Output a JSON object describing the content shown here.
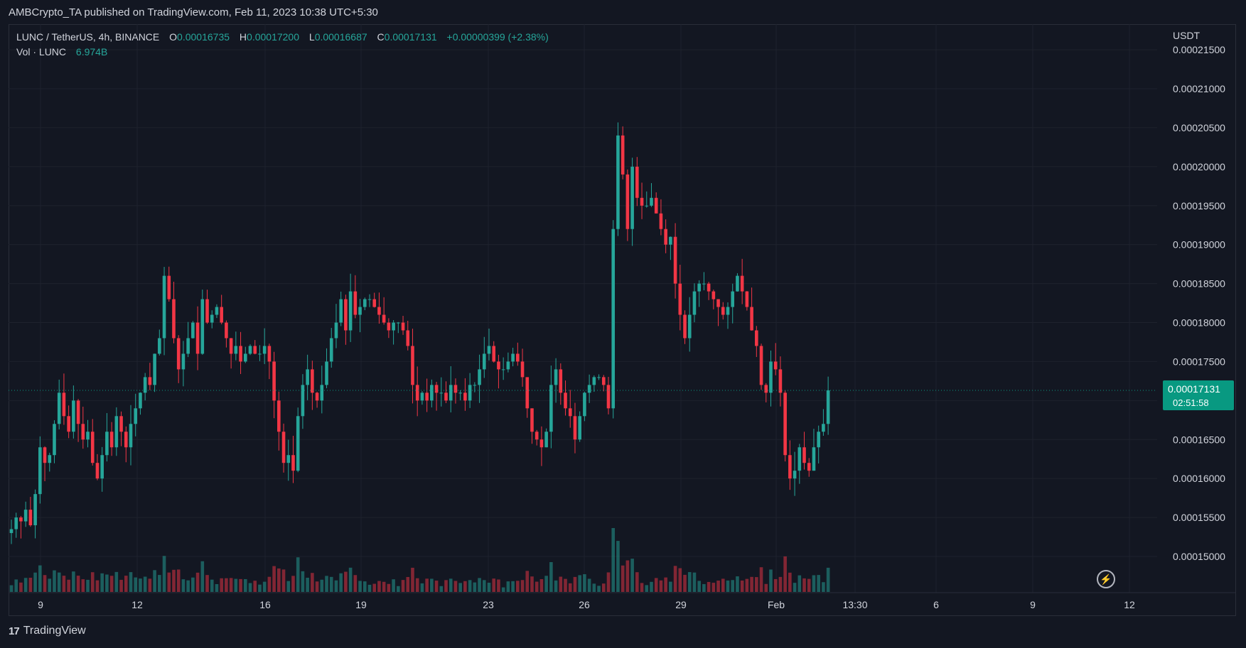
{
  "header": {
    "text": "AMBCrypto_TA published on TradingView.com, Feb 11, 2023 10:38 UTC+5:30"
  },
  "legend": {
    "symbol": "LUNC / TetherUS, 4h, BINANCE",
    "o_label": "O",
    "o_value": "0.00016735",
    "h_label": "H",
    "h_value": "0.00017200",
    "l_label": "L",
    "l_value": "0.00016687",
    "c_label": "C",
    "c_value": "0.00017131",
    "change": "+0.00000399 (+2.38%)",
    "vol_label": "Vol · LUNC",
    "vol_value": "6.974B"
  },
  "price_axis": {
    "currency": "USDT",
    "ticks": [
      "0.00021500",
      "0.00021000",
      "0.00020500",
      "0.00020000",
      "0.00019500",
      "0.00019000",
      "0.00018500",
      "0.00018000",
      "0.00017500",
      "0.00017000",
      "0.00016500",
      "0.00016000",
      "0.00015500",
      "0.00015000"
    ]
  },
  "last_price": {
    "price": "0.00017131",
    "countdown": "02:51:58",
    "color": "#089981"
  },
  "time_axis": {
    "ticks": [
      "9",
      "12",
      "16",
      "19",
      "23",
      "26",
      "29",
      "Feb",
      "13:30",
      "6",
      "9",
      "12"
    ]
  },
  "footer": {
    "brand": "TradingView"
  },
  "colors": {
    "up": "#26a69a",
    "down": "#f23645",
    "background": "#131722",
    "grid": "#1e222d"
  },
  "chart_data": {
    "type": "candlestick",
    "symbol": "LUNC / TetherUS",
    "interval": "4h",
    "exchange": "BINANCE",
    "ylim": [
      0.000146,
      0.000216
    ],
    "x_ticks": [
      "9",
      "12",
      "16",
      "19",
      "23",
      "26",
      "29",
      "Feb",
      "13:30",
      "6",
      "9",
      "12"
    ],
    "closes": [
      0.0001535,
      0.000155,
      0.0001545,
      0.000156,
      0.000154,
      0.000158,
      0.000164,
      0.000162,
      0.000163,
      0.000167,
      0.000171,
      0.000168,
      0.000166,
      0.00017,
      0.000167,
      0.000165,
      0.000166,
      0.000162,
      0.00016,
      0.000163,
      0.000166,
      0.000164,
      0.000168,
      0.000166,
      0.000164,
      0.000167,
      0.000169,
      0.000171,
      0.000173,
      0.000172,
      0.000176,
      0.000178,
      0.000186,
      0.000183,
      0.000178,
      0.000174,
      0.000176,
      0.000178,
      0.00018,
      0.000176,
      0.000183,
      0.00018,
      0.000181,
      0.000182,
      0.00018,
      0.000178,
      0.000176,
      0.000177,
      0.000175,
      0.000176,
      0.000177,
      0.000176,
      0.000176,
      0.000177,
      0.000175,
      0.00017,
      0.000166,
      0.000162,
      0.000163,
      0.000161,
      0.000168,
      0.000172,
      0.000174,
      0.000171,
      0.00017,
      0.000172,
      0.000175,
      0.000178,
      0.00018,
      0.000183,
      0.000179,
      0.000184,
      0.000181,
      0.000182,
      0.000183,
      0.000183,
      0.000182,
      0.000181,
      0.00018,
      0.000179,
      0.00018,
      0.00018,
      0.000179,
      0.000177,
      0.000172,
      0.00017,
      0.000171,
      0.00017,
      0.000172,
      0.000171,
      0.000171,
      0.00017,
      0.000172,
      0.000171,
      0.000171,
      0.00017,
      0.000172,
      0.000172,
      0.000174,
      0.000176,
      0.000177,
      0.000175,
      0.000174,
      0.000174,
      0.000175,
      0.000176,
      0.000175,
      0.000173,
      0.000169,
      0.000166,
      0.000165,
      0.000164,
      0.000166,
      0.000172,
      0.000174,
      0.000171,
      0.000169,
      0.000168,
      0.000165,
      0.000168,
      0.000171,
      0.000172,
      0.000173,
      0.000173,
      0.000172,
      0.000169,
      0.000192,
      0.000204,
      0.000199,
      0.000192,
      0.0002,
      0.000196,
      0.000195,
      0.000195,
      0.000196,
      0.000194,
      0.000192,
      0.00019,
      0.000191,
      0.000185,
      0.000181,
      0.000178,
      0.000181,
      0.000184,
      0.000185,
      0.000185,
      0.000184,
      0.000183,
      0.000182,
      0.000181,
      0.000182,
      0.000184,
      0.000186,
      0.000184,
      0.000182,
      0.000179,
      0.000177,
      0.000172,
      0.000171,
      0.000175,
      0.000174,
      0.000171,
      0.000163,
      0.00016,
      0.000161,
      0.000164,
      0.000162,
      0.000161,
      0.000164,
      0.000166,
      0.000167,
      0.00017131
    ],
    "volume_last": "6.974B"
  }
}
